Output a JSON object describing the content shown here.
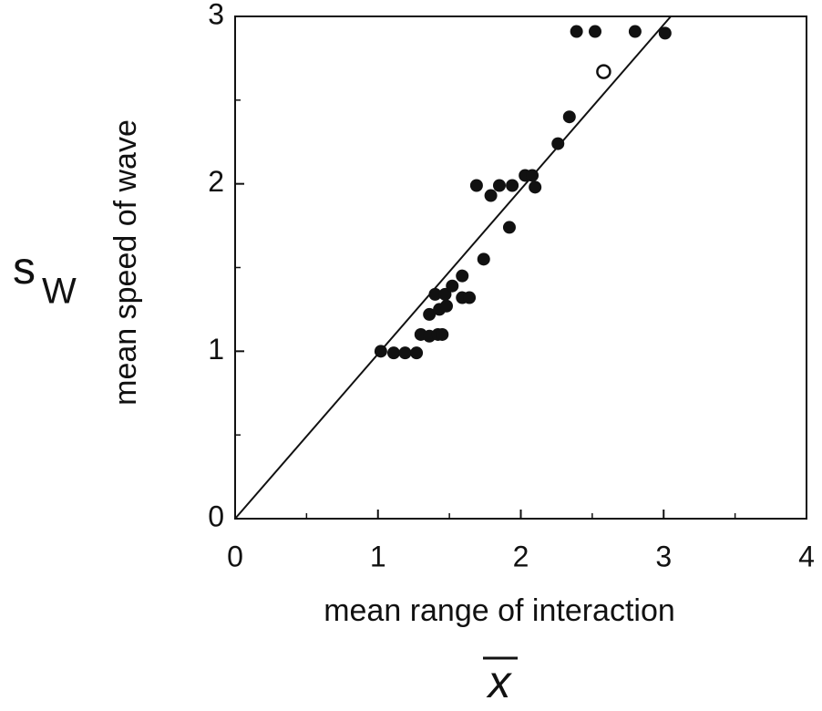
{
  "chart_data": {
    "type": "scatter",
    "xlabel": "mean range of interaction",
    "ylabel": "mean speed of wave",
    "x_symbol": "x",
    "y_symbol": {
      "base": "s",
      "sub": "W"
    },
    "xlim": [
      0,
      4
    ],
    "ylim": [
      0,
      3
    ],
    "xticks": [
      0,
      1,
      2,
      3,
      4
    ],
    "yticks": [
      0,
      1,
      2,
      3
    ],
    "xminor_ticks": [
      0.5,
      1.5,
      2.5,
      3.5
    ],
    "yminor_ticks": [
      0.5,
      1.5,
      2.5
    ],
    "color": "#111111",
    "series": [
      {
        "filled": true,
        "x": [
          1.02,
          1.11,
          1.19,
          1.27,
          1.3,
          1.36,
          1.42,
          1.45,
          1.36,
          1.43,
          1.4,
          1.47,
          1.48,
          1.52,
          1.59,
          1.59,
          1.64,
          1.74,
          1.69,
          1.79,
          1.85,
          1.94,
          1.92,
          2.03,
          2.08,
          2.1,
          2.26,
          2.34,
          2.39,
          2.52,
          2.8,
          3.01
        ],
        "y": [
          1.0,
          0.99,
          0.99,
          0.99,
          1.1,
          1.09,
          1.1,
          1.1,
          1.22,
          1.25,
          1.34,
          1.34,
          1.27,
          1.39,
          1.45,
          1.32,
          1.32,
          1.55,
          1.99,
          1.93,
          1.99,
          1.99,
          1.74,
          2.05,
          2.05,
          1.98,
          2.24,
          2.4,
          2.91,
          2.91,
          2.91,
          2.9
        ]
      },
      {
        "filled": false,
        "x": [
          2.58
        ],
        "y": [
          2.67
        ]
      }
    ],
    "lines": [
      {
        "x": [
          0,
          3.05
        ],
        "y": [
          0,
          3
        ]
      }
    ]
  }
}
